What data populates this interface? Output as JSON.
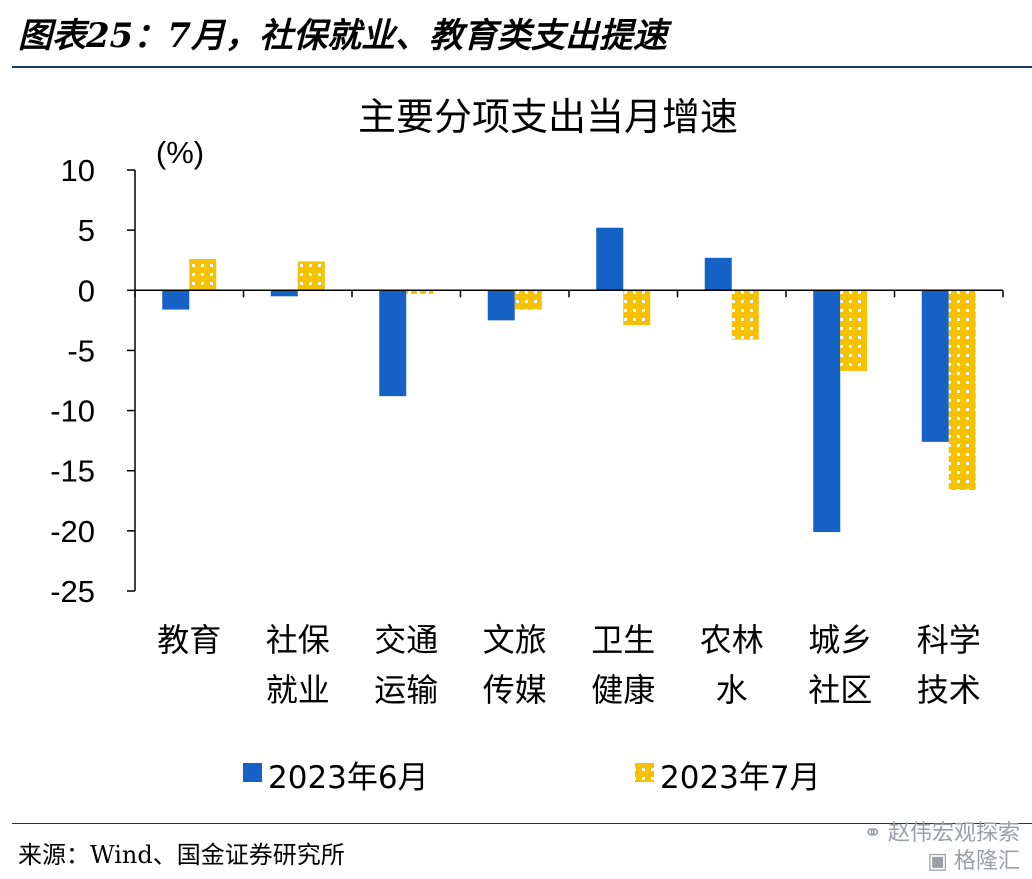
{
  "figure_title": "图表25：7月，社保就业、教育类支出提速",
  "source": "来源：Wind、国金证券研究所",
  "watermark": {
    "line1": "赵伟宏观探索",
    "line2": "格隆汇"
  },
  "colors": {
    "series1": "#1561c6",
    "series2": "#f6c100",
    "series2_dot": "#ffffff",
    "axis": "#000000",
    "rule": "#1f3864"
  },
  "chart_data": {
    "type": "bar",
    "title": "主要分项支出当月增速",
    "ylabel": "(%)",
    "ylim": [
      -25,
      10
    ],
    "yticks": [
      10,
      5,
      0,
      -5,
      -10,
      -15,
      -20,
      -25
    ],
    "grid": false,
    "legend_position": "bottom",
    "categories": [
      [
        "教育"
      ],
      [
        "社保",
        "就业"
      ],
      [
        "交通",
        "运输"
      ],
      [
        "文旅",
        "传媒"
      ],
      [
        "卫生",
        "健康"
      ],
      [
        "农林",
        "水"
      ],
      [
        "城乡",
        "社区"
      ],
      [
        "科学",
        "技术"
      ]
    ],
    "series": [
      {
        "name": "2023年6月",
        "values": [
          -1.6,
          -0.5,
          -8.8,
          -2.5,
          5.2,
          2.7,
          -20.1,
          -12.6
        ]
      },
      {
        "name": "2023年7月",
        "values": [
          2.6,
          2.4,
          -0.3,
          -1.6,
          -2.9,
          -4.1,
          -6.7,
          -16.6
        ]
      }
    ]
  }
}
